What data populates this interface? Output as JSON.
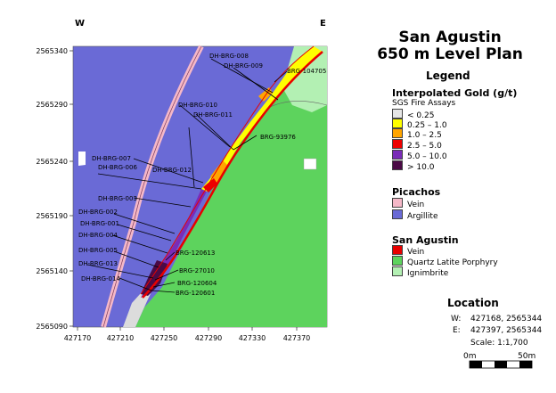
{
  "map": {
    "compass_w": "W",
    "compass_e": "E",
    "y_ticks": [
      "2565340",
      "2565290",
      "2565240",
      "2565190",
      "2565140",
      "2565090"
    ],
    "x_ticks": [
      "427170",
      "427210",
      "427250",
      "427290",
      "427330",
      "427370"
    ],
    "colors": {
      "argillite": "#6a6ad6",
      "qlp": "#5dd35d",
      "ignimbrite": "#b3f0b3",
      "vein_pink": "#f5b8c8",
      "vein_red": "#e80000",
      "yellow": "#ffff00",
      "orange": "#ffa500",
      "dark_purple": "#4b0a46",
      "grey": "#dcdcdc"
    },
    "drill_labels": [
      "DH-BRG-008",
      "DH-BRG-009",
      "BRG-104705",
      "DH-BRG-010",
      "DH-BRG-011",
      "BRG-93976",
      "DH-BRG-007",
      "DH-BRG-006",
      "DH-BRG-012",
      "DH-BRG-003",
      "DH-BRG-002",
      "DH-BRG-001",
      "DH-BRG-004",
      "BRG-120613",
      "DH-BRG-005",
      "DH-BRG-013",
      "BRG-27010",
      "DH-BRG-014",
      "BRG-120604",
      "BRG-120601"
    ]
  },
  "title": {
    "line1": "San Agustin",
    "line2": "650 m Level Plan"
  },
  "legend": {
    "heading": "Legend",
    "gold_title": "Interpolated Gold (g/t)",
    "gold_sub": "SGS Fire Assays",
    "gold": [
      {
        "label": "< 0.25",
        "color": "#e6e6e6"
      },
      {
        "label": "0.25 – 1.0",
        "color": "#ffff00"
      },
      {
        "label": "1.0 – 2.5",
        "color": "#ffa500"
      },
      {
        "label": "2.5 – 5.0",
        "color": "#ee0000"
      },
      {
        "label": "5.0 – 10.0",
        "color": "#7a2bb8"
      },
      {
        "label": "> 10.0",
        "color": "#4b0a46"
      }
    ],
    "picachos_title": "Picachos",
    "picachos": [
      {
        "label": "Vein",
        "color": "#f5b8c8"
      },
      {
        "label": "Argillite",
        "color": "#6a6ad6"
      }
    ],
    "sanagustin_title": "San Agustin",
    "sanagustin": [
      {
        "label": "Vein",
        "color": "#e80000"
      },
      {
        "label": "Quartz Latite Porphyry",
        "color": "#5dd35d"
      },
      {
        "label": "Ignimbrite",
        "color": "#b3f0b3"
      }
    ]
  },
  "location": {
    "heading": "Location",
    "w_label": "W:",
    "w_value": "427168, 2565344",
    "e_label": "E:",
    "e_value": "427397, 2565344",
    "scale": "Scale: 1:1,700",
    "bar_start": "0m",
    "bar_end": "50m"
  }
}
